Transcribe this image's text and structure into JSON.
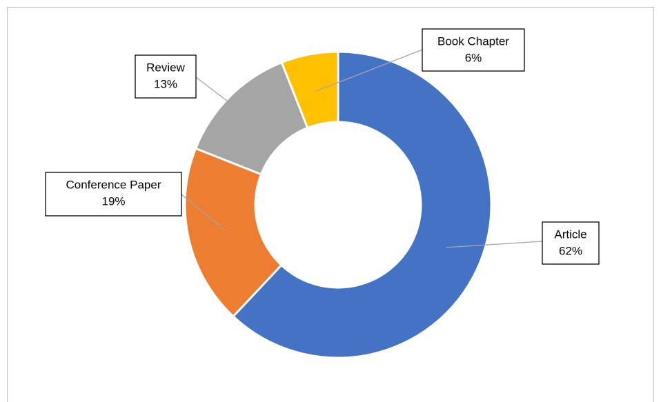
{
  "chart_data": {
    "type": "donut",
    "categories": [
      "Article",
      "Conference Paper",
      "Review",
      "Book Chapter"
    ],
    "values": [
      62,
      19,
      13,
      6
    ],
    "value_labels": [
      "62%",
      "19%",
      "13%",
      "6%"
    ],
    "colors": [
      "#4472c4",
      "#ed7d31",
      "#a5a5a5",
      "#ffc000"
    ]
  }
}
